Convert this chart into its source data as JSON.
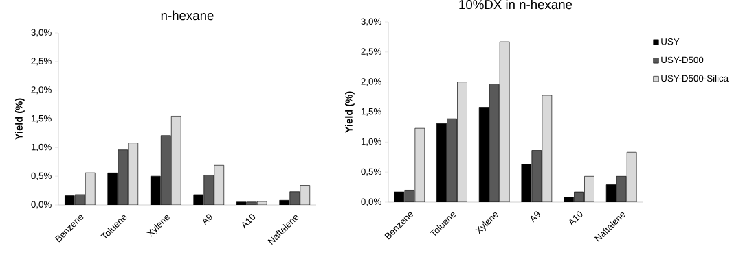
{
  "chart_data": [
    {
      "type": "bar",
      "title": "n-hexane",
      "ylabel": "Yield (%)",
      "categories": [
        "Benzene",
        "Toluene",
        "Xylene",
        "A9",
        "A10",
        "Naftalene"
      ],
      "series": [
        {
          "color": "#000000",
          "values": [
            0.16,
            0.56,
            0.5,
            0.18,
            0.05,
            0.08
          ]
        },
        {
          "color": "#595959",
          "values": [
            0.18,
            0.96,
            1.21,
            0.52,
            0.05,
            0.23
          ]
        },
        {
          "color": "#d9d9d9",
          "values": [
            0.56,
            1.08,
            1.55,
            0.69,
            0.06,
            0.34
          ]
        }
      ],
      "ylim": [
        0,
        3
      ],
      "yticks": [
        {
          "value": 0,
          "label": "0,0%"
        },
        {
          "value": 0.5,
          "label": "0,5%"
        },
        {
          "value": 1,
          "label": "1,0%"
        },
        {
          "value": 1.5,
          "label": "1,5%"
        },
        {
          "value": 2,
          "label": "2,0%"
        },
        {
          "value": 2.5,
          "label": "2,5%"
        },
        {
          "value": 3,
          "label": "3,0%"
        }
      ],
      "grid": false,
      "legend": false
    },
    {
      "type": "bar",
      "title": "10%DX in n-hexane",
      "ylabel": "Yield (%)",
      "categories": [
        "Benzene",
        "Toluene",
        "Xylene",
        "A9",
        "A10",
        "Naftalene"
      ],
      "series": [
        {
          "name": "USY",
          "color": "#000000",
          "values": [
            0.17,
            1.31,
            1.58,
            0.63,
            0.08,
            0.29
          ]
        },
        {
          "name": "USY-D500",
          "color": "#595959",
          "values": [
            0.2,
            1.39,
            1.96,
            0.86,
            0.17,
            0.43
          ]
        },
        {
          "name": "USY-D500-Silica",
          "color": "#d9d9d9",
          "values": [
            1.23,
            2.0,
            2.67,
            1.78,
            0.43,
            0.83
          ]
        }
      ],
      "ylim": [
        0,
        3
      ],
      "yticks": [
        {
          "value": 0,
          "label": "0,0%"
        },
        {
          "value": 0.5,
          "label": "0,5%"
        },
        {
          "value": 1,
          "label": "1,0%"
        },
        {
          "value": 1.5,
          "label": "1,5%"
        },
        {
          "value": 2,
          "label": "2,0%"
        },
        {
          "value": 2.5,
          "label": "2,5%"
        },
        {
          "value": 3,
          "label": "3,0%"
        }
      ],
      "grid": false,
      "legend": "right"
    }
  ]
}
